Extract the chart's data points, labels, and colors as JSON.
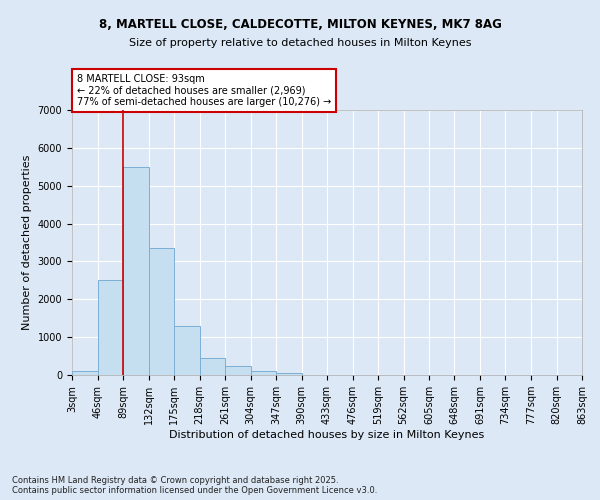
{
  "title1": "8, MARTELL CLOSE, CALDECOTTE, MILTON KEYNES, MK7 8AG",
  "title2": "Size of property relative to detached houses in Milton Keynes",
  "xlabel": "Distribution of detached houses by size in Milton Keynes",
  "ylabel": "Number of detached properties",
  "bin_edges": [
    3,
    46,
    89,
    132,
    175,
    218,
    261,
    304,
    347,
    390,
    433,
    476,
    519,
    562,
    605,
    648,
    691,
    734,
    777,
    820,
    863
  ],
  "bin_labels": [
    "3sqm",
    "46sqm",
    "89sqm",
    "132sqm",
    "175sqm",
    "218sqm",
    "261sqm",
    "304sqm",
    "347sqm",
    "390sqm",
    "433sqm",
    "476sqm",
    "519sqm",
    "562sqm",
    "605sqm",
    "648sqm",
    "691sqm",
    "734sqm",
    "777sqm",
    "820sqm",
    "863sqm"
  ],
  "counts": [
    100,
    2500,
    5500,
    3350,
    1300,
    450,
    230,
    100,
    50,
    10,
    5,
    2,
    1,
    0,
    0,
    0,
    0,
    0,
    0,
    0
  ],
  "bar_color": "#c5dff0",
  "bar_edge_color": "#7bafd4",
  "property_line_x": 89,
  "annotation_title": "8 MARTELL CLOSE: 93sqm",
  "annotation_line1": "← 22% of detached houses are smaller (2,969)",
  "annotation_line2": "77% of semi-detached houses are larger (10,276) →",
  "annotation_box_color": "#ffffff",
  "annotation_box_edge": "#cc0000",
  "red_line_color": "#cc0000",
  "ylim": [
    0,
    7000
  ],
  "yticks": [
    0,
    1000,
    2000,
    3000,
    4000,
    5000,
    6000,
    7000
  ],
  "footer1": "Contains HM Land Registry data © Crown copyright and database right 2025.",
  "footer2": "Contains public sector information licensed under the Open Government Licence v3.0.",
  "bg_color": "#dce8f5",
  "plot_bg_color": "#dce8f5",
  "title_fontsize": 8.5,
  "subtitle_fontsize": 8,
  "ylabel_fontsize": 8,
  "xlabel_fontsize": 8,
  "tick_fontsize": 7,
  "annotation_fontsize": 7,
  "footer_fontsize": 6
}
